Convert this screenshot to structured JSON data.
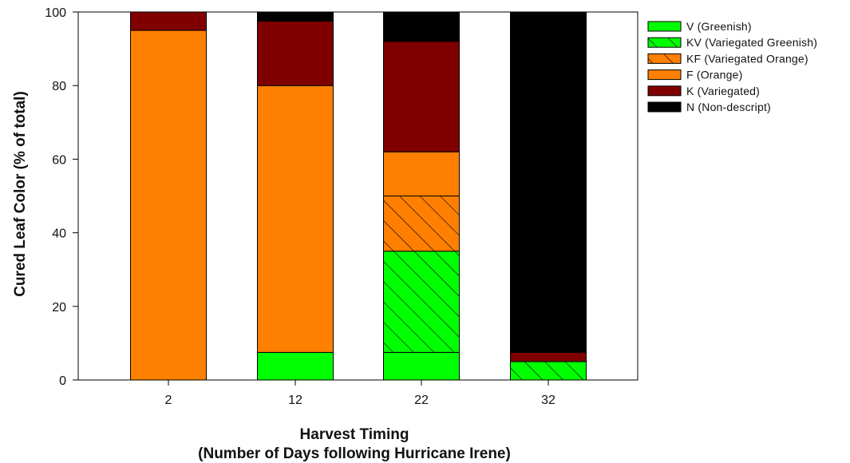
{
  "chart_data": {
    "type": "bar",
    "stacked": true,
    "title": "",
    "xlabel_lines": [
      "Harvest Timing",
      "(Number of Days following Hurricane Irene)"
    ],
    "ylabel": "Cured Leaf Color (% of total)",
    "ylim": [
      0,
      100
    ],
    "yticks": [
      0,
      20,
      40,
      60,
      80,
      100
    ],
    "categories": [
      "2",
      "12",
      "22",
      "32"
    ],
    "legend_position": "top-right outside plot",
    "series": [
      {
        "name": "V (Greenish)",
        "color": "#00ff00",
        "pattern": "none",
        "values": [
          0,
          7.5,
          7.5,
          0
        ]
      },
      {
        "name": "KV (Variegated Greenish)",
        "color": "#00ff00",
        "pattern": "diagonal-hatch",
        "values": [
          0,
          0,
          27.5,
          5
        ]
      },
      {
        "name": "KF (Variegated Orange)",
        "color": "#ff7f00",
        "pattern": "diagonal-hatch",
        "values": [
          0,
          0,
          15,
          0
        ]
      },
      {
        "name": "F (Orange)",
        "color": "#ff7f00",
        "pattern": "none",
        "values": [
          95,
          72.5,
          12,
          0
        ]
      },
      {
        "name": "K (Variegated)",
        "color": "#800000",
        "pattern": "none",
        "values": [
          5,
          17.5,
          30,
          2.5
        ]
      },
      {
        "name": "N (Non-descript)",
        "color": "#000000",
        "pattern": "none",
        "values": [
          0,
          2.5,
          8,
          92.5
        ]
      }
    ]
  }
}
